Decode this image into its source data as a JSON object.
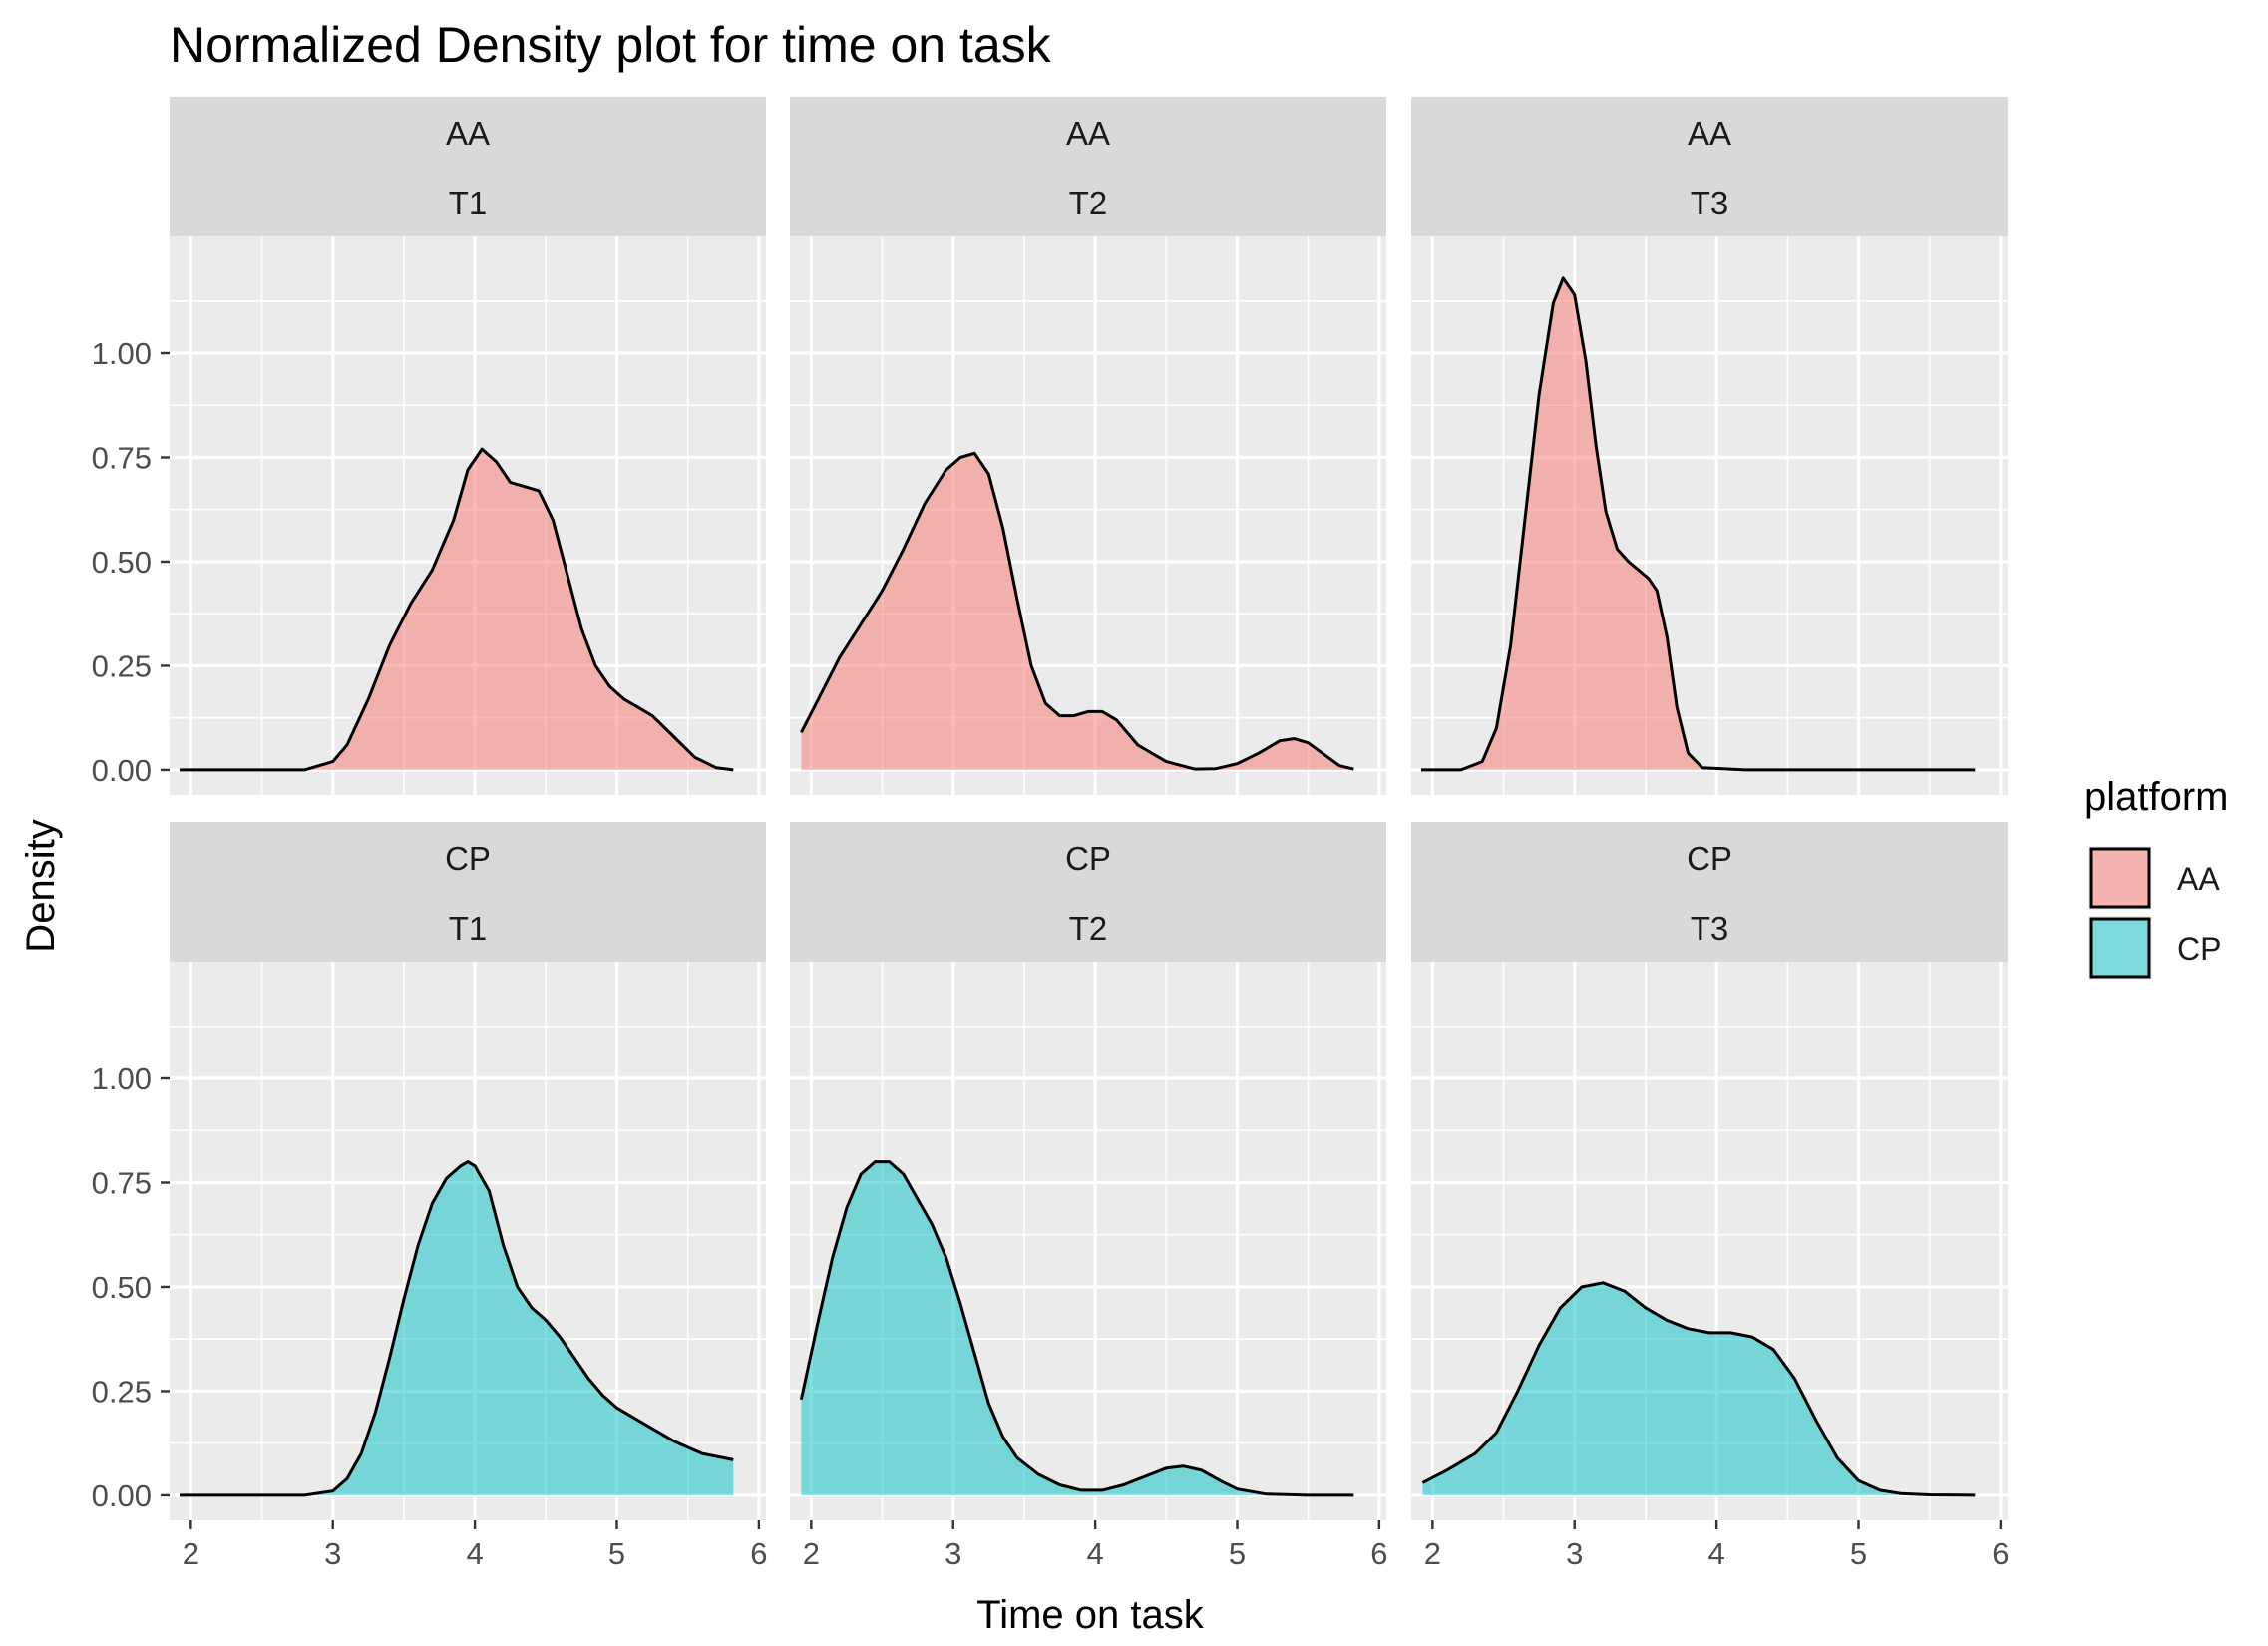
{
  "chart_data": {
    "type": "area",
    "title": "Normalized Density plot for time on task",
    "xlabel": "Time on task",
    "ylabel": "Density",
    "xlim": [
      1.85,
      6.05
    ],
    "ylim": [
      -0.06,
      1.28
    ],
    "xticks": [
      2,
      3,
      4,
      5,
      6
    ],
    "yticks": [
      0.0,
      0.25,
      0.5,
      0.75,
      1.0
    ],
    "ytick_labels": [
      "0.00",
      "0.25",
      "0.50",
      "0.75",
      "1.00"
    ],
    "grid": true,
    "legend": {
      "title": "platform",
      "position": "right",
      "entries": [
        {
          "label": "AA",
          "color": "#F8766D"
        },
        {
          "label": "CP",
          "color": "#00BFC4"
        }
      ]
    },
    "facet_rows": [
      "AA",
      "CP"
    ],
    "facet_cols": [
      "T1",
      "T2",
      "T3"
    ],
    "panels": [
      {
        "platform": "AA",
        "task": "T1",
        "x": [
          1.92,
          2.8,
          3.0,
          3.1,
          3.25,
          3.4,
          3.55,
          3.7,
          3.85,
          3.95,
          4.05,
          4.15,
          4.25,
          4.35,
          4.45,
          4.55,
          4.65,
          4.75,
          4.85,
          4.95,
          5.05,
          5.15,
          5.25,
          5.4,
          5.55,
          5.7,
          5.82
        ],
        "y": [
          0,
          0,
          0.02,
          0.06,
          0.17,
          0.3,
          0.4,
          0.48,
          0.6,
          0.72,
          0.77,
          0.74,
          0.69,
          0.68,
          0.67,
          0.6,
          0.47,
          0.34,
          0.25,
          0.2,
          0.17,
          0.15,
          0.13,
          0.08,
          0.03,
          0.005,
          0
        ]
      },
      {
        "platform": "AA",
        "task": "T2",
        "x": [
          1.93,
          2.05,
          2.2,
          2.35,
          2.5,
          2.65,
          2.8,
          2.95,
          3.05,
          3.15,
          3.25,
          3.35,
          3.45,
          3.55,
          3.65,
          3.75,
          3.85,
          3.95,
          4.05,
          4.15,
          4.3,
          4.5,
          4.7,
          4.85,
          5.0,
          5.15,
          5.3,
          5.4,
          5.5,
          5.6,
          5.72,
          5.82
        ],
        "y": [
          0.09,
          0.17,
          0.27,
          0.35,
          0.43,
          0.53,
          0.64,
          0.72,
          0.75,
          0.76,
          0.71,
          0.58,
          0.41,
          0.25,
          0.16,
          0.13,
          0.13,
          0.14,
          0.14,
          0.12,
          0.06,
          0.02,
          0.002,
          0.003,
          0.015,
          0.04,
          0.07,
          0.075,
          0.065,
          0.04,
          0.01,
          0.002
        ]
      },
      {
        "platform": "AA",
        "task": "T3",
        "x": [
          1.92,
          2.2,
          2.35,
          2.45,
          2.55,
          2.65,
          2.75,
          2.85,
          2.92,
          3.0,
          3.08,
          3.15,
          3.22,
          3.3,
          3.38,
          3.45,
          3.52,
          3.58,
          3.65,
          3.72,
          3.8,
          3.9,
          4.2,
          5.0,
          5.82
        ],
        "y": [
          0,
          0,
          0.02,
          0.1,
          0.3,
          0.6,
          0.9,
          1.12,
          1.18,
          1.14,
          0.98,
          0.78,
          0.62,
          0.53,
          0.5,
          0.48,
          0.46,
          0.43,
          0.32,
          0.15,
          0.04,
          0.005,
          0,
          0,
          0
        ]
      },
      {
        "platform": "CP",
        "task": "T1",
        "x": [
          1.92,
          2.8,
          3.0,
          3.1,
          3.2,
          3.3,
          3.4,
          3.5,
          3.6,
          3.7,
          3.8,
          3.9,
          3.95,
          4.0,
          4.1,
          4.2,
          4.3,
          4.4,
          4.5,
          4.6,
          4.7,
          4.8,
          4.9,
          5.0,
          5.2,
          5.4,
          5.6,
          5.82
        ],
        "y": [
          0,
          0,
          0.01,
          0.04,
          0.1,
          0.2,
          0.33,
          0.47,
          0.6,
          0.7,
          0.76,
          0.79,
          0.8,
          0.79,
          0.73,
          0.6,
          0.5,
          0.45,
          0.42,
          0.38,
          0.33,
          0.28,
          0.24,
          0.21,
          0.17,
          0.13,
          0.1,
          0.085
        ]
      },
      {
        "platform": "CP",
        "task": "T2",
        "x": [
          1.93,
          2.05,
          2.15,
          2.25,
          2.35,
          2.45,
          2.55,
          2.65,
          2.75,
          2.85,
          2.95,
          3.05,
          3.15,
          3.25,
          3.35,
          3.45,
          3.6,
          3.75,
          3.9,
          4.05,
          4.2,
          4.35,
          4.5,
          4.62,
          4.75,
          4.88,
          5.0,
          5.2,
          5.5,
          5.82
        ],
        "y": [
          0.23,
          0.42,
          0.57,
          0.69,
          0.77,
          0.8,
          0.8,
          0.77,
          0.71,
          0.65,
          0.57,
          0.46,
          0.34,
          0.22,
          0.14,
          0.09,
          0.05,
          0.025,
          0.012,
          0.012,
          0.025,
          0.045,
          0.065,
          0.07,
          0.06,
          0.035,
          0.015,
          0.003,
          0,
          0
        ]
      },
      {
        "platform": "CP",
        "task": "T3",
        "x": [
          1.93,
          2.1,
          2.3,
          2.45,
          2.6,
          2.75,
          2.9,
          3.05,
          3.2,
          3.35,
          3.5,
          3.65,
          3.8,
          3.95,
          4.1,
          4.25,
          4.4,
          4.55,
          4.7,
          4.85,
          5.0,
          5.15,
          5.3,
          5.5,
          5.82
        ],
        "y": [
          0.03,
          0.06,
          0.1,
          0.15,
          0.25,
          0.36,
          0.45,
          0.5,
          0.51,
          0.49,
          0.45,
          0.42,
          0.4,
          0.39,
          0.39,
          0.38,
          0.35,
          0.28,
          0.18,
          0.09,
          0.035,
          0.012,
          0.004,
          0.001,
          0
        ]
      }
    ]
  }
}
